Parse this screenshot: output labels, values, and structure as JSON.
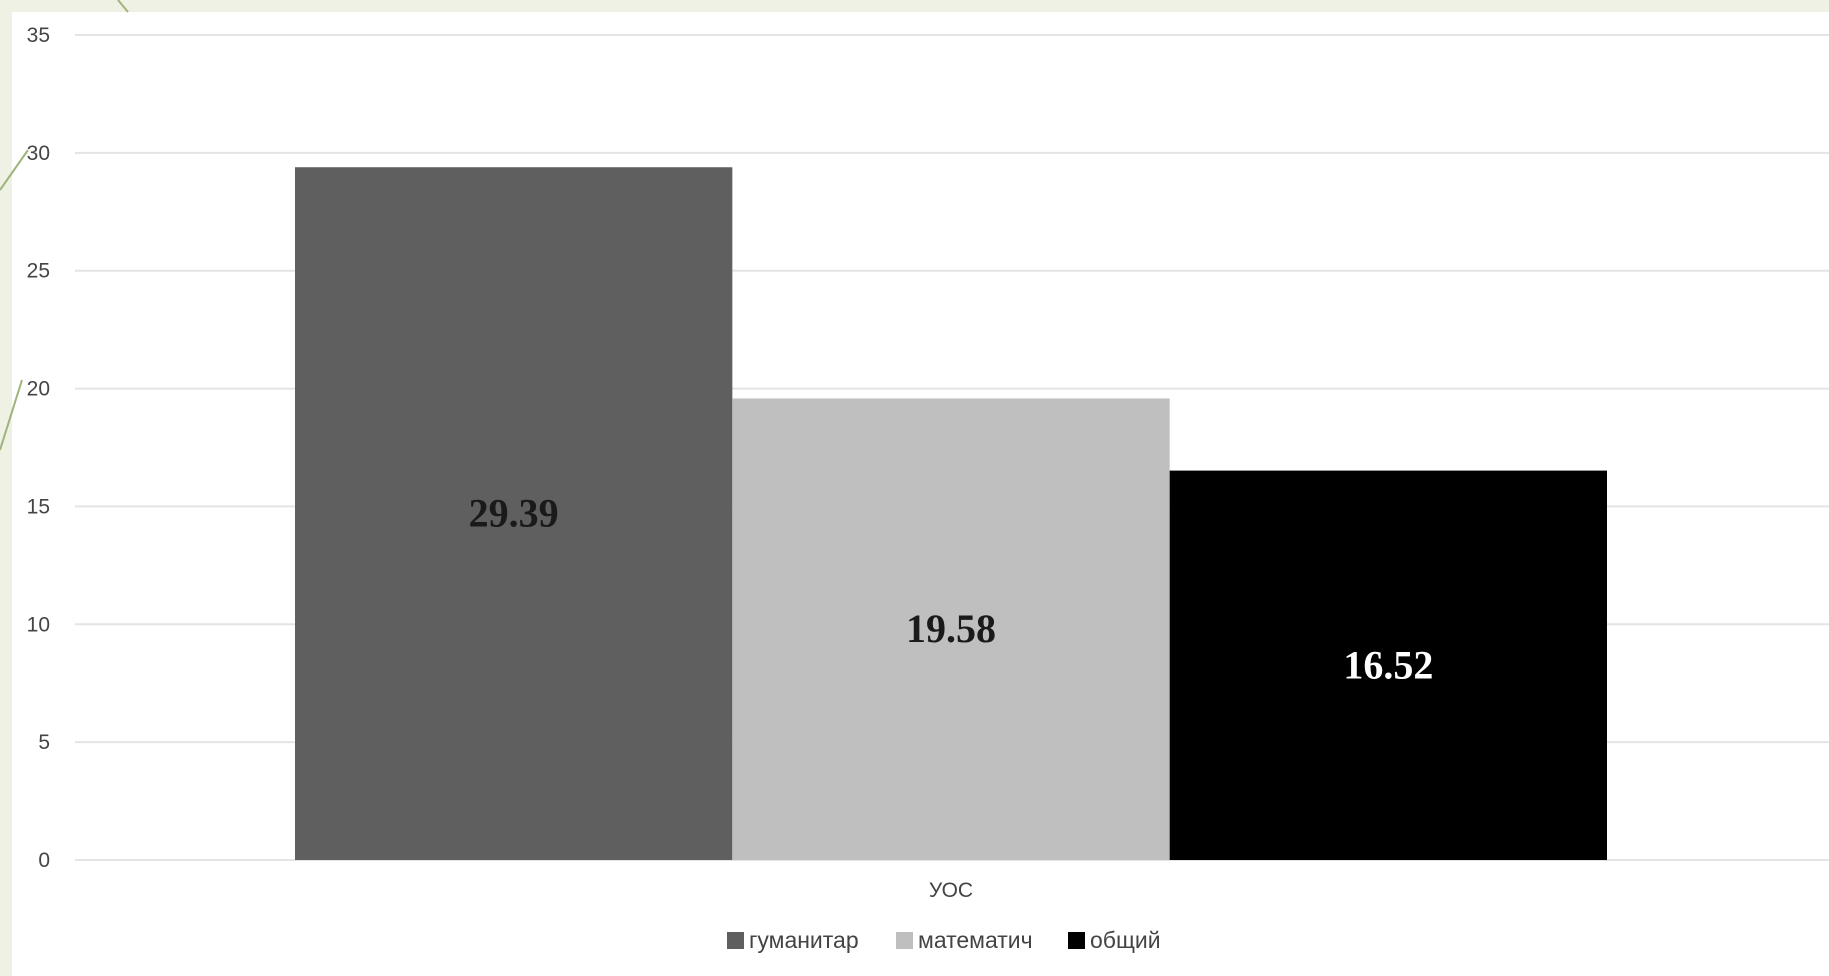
{
  "chart_data": {
    "type": "bar",
    "categories": [
      "УОС"
    ],
    "series": [
      {
        "name": "гуманитар",
        "values": [
          29.39
        ],
        "color": "#5f5f5f",
        "label_color": "#1a1a1a",
        "label": "29.39"
      },
      {
        "name": "математич",
        "values": [
          19.58
        ],
        "color": "#bfbfbf",
        "label_color": "#1a1a1a",
        "label": "19.58"
      },
      {
        "name": "общий",
        "values": [
          16.52
        ],
        "color": "#000000",
        "label_color": "#ffffff",
        "label": "16.52"
      }
    ],
    "title": "",
    "xlabel": "",
    "ylabel": "",
    "ylim": [
      0,
      35
    ],
    "yticks": [
      "0",
      "5",
      "10",
      "15",
      "20",
      "25",
      "30",
      "35"
    ],
    "grid": true,
    "legend_position": "bottom"
  }
}
